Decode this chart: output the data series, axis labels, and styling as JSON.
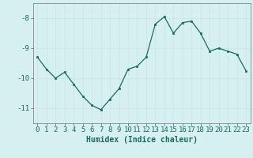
{
  "x": [
    0,
    1,
    2,
    3,
    4,
    5,
    6,
    7,
    8,
    9,
    10,
    11,
    12,
    13,
    14,
    15,
    16,
    17,
    18,
    19,
    20,
    21,
    22,
    23
  ],
  "y": [
    -9.3,
    -9.7,
    -10.0,
    -9.8,
    -10.2,
    -10.6,
    -10.9,
    -11.05,
    -10.7,
    -10.35,
    -9.7,
    -9.6,
    -9.3,
    -8.2,
    -7.95,
    -8.5,
    -8.15,
    -8.1,
    -8.5,
    -9.1,
    -9.0,
    -9.1,
    -9.2,
    -9.75
  ],
  "xlabel": "Humidex (Indice chaleur)",
  "ylim": [
    -11.5,
    -7.5
  ],
  "yticks": [
    -11,
    -10,
    -9,
    -8
  ],
  "xlim": [
    -0.5,
    23.5
  ],
  "line_color": "#1a6b5a",
  "marker_color": "#1a6b5a",
  "bg_color": "#d6f0ef",
  "grid_color": "#c8e8e5",
  "axis_color": "#888888",
  "tick_color": "#1a6b5a",
  "label_fontsize": 7,
  "tick_fontsize": 6.5
}
